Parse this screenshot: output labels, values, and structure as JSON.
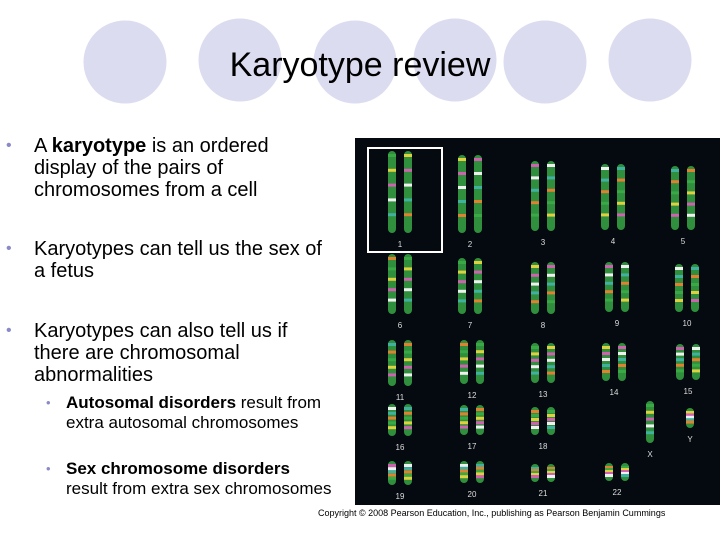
{
  "title": "Karyotype review",
  "bullets": [
    {
      "level": 0,
      "parts": [
        {
          "text": "A "
        },
        {
          "text": "karyotype",
          "bold": true
        },
        {
          "text": " is an ordered display of the pairs of chromosomes from a cell"
        }
      ]
    },
    {
      "level": 0,
      "parts": [
        {
          "text": "Karyotypes can tell us the sex of a fetus"
        }
      ]
    },
    {
      "level": 0,
      "parts": [
        {
          "text": "Karyotypes can also tell us if there are chromosomal abnormalities"
        }
      ]
    },
    {
      "level": 1,
      "parts": [
        {
          "text": "Autosomal disorders",
          "bold": true
        },
        {
          "text": " result from extra autosomal chromosomes"
        }
      ]
    },
    {
      "level": 1,
      "parts": [
        {
          "text": "Sex chromosome disorders",
          "bold": true
        },
        {
          "text": " result from extra sex chromosomes"
        }
      ]
    }
  ],
  "karyotype_labels": [
    "1",
    "2",
    "3",
    "4",
    "5",
    "6",
    "7",
    "8",
    "9",
    "10",
    "11",
    "12",
    "13",
    "14",
    "15",
    "16",
    "17",
    "18",
    "X",
    "Y",
    "19",
    "20",
    "21",
    "22"
  ],
  "copyright": "Copyright © 2008 Pearson Education, Inc., publishing as Pearson Benjamin Cummings"
}
